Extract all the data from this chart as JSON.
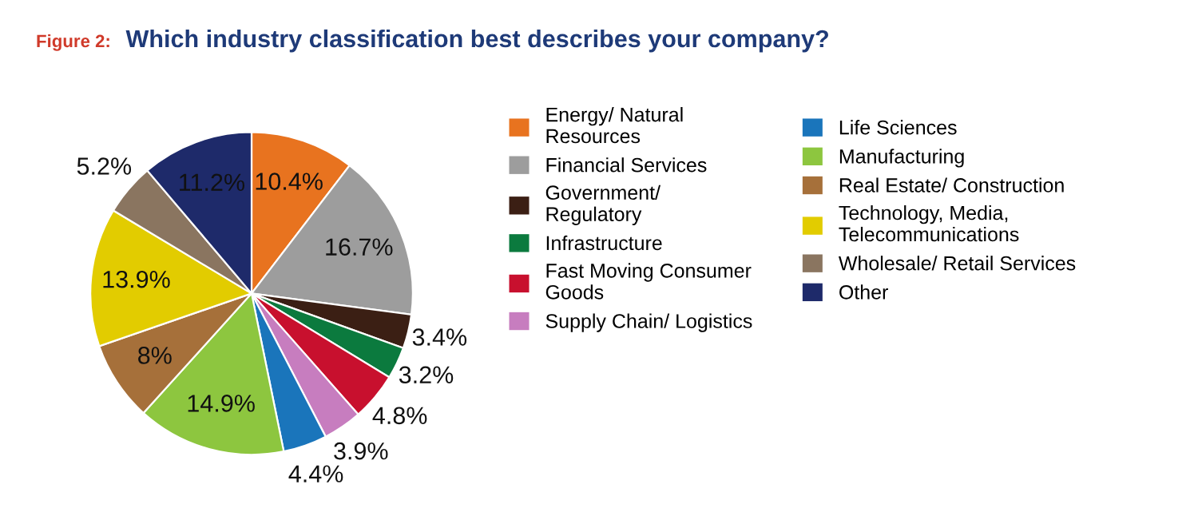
{
  "chart_data": {
    "type": "pie",
    "title": "Which industry classification best describes your company?",
    "annotations": [
      "Figure 2:"
    ],
    "categories": [
      "Energy/ Natural\nResources",
      "Financial Services",
      "Government/\nRegulatory",
      "Infrastructure",
      "Fast Moving Consumer\nGoods",
      "Supply Chain/ Logistics",
      "Life Sciences",
      "Manufacturing",
      "Real Estate/ Construction",
      "Technology, Media,\nTelecommunications",
      "Wholesale/ Retail Services",
      "Other"
    ],
    "values": [
      10.4,
      16.7,
      3.4,
      3.2,
      4.8,
      3.9,
      4.4,
      14.9,
      8,
      13.9,
      5.2,
      11.2
    ],
    "value_labels": [
      "10.4%",
      "16.7%",
      "3.4%",
      "3.2%",
      "4.8%",
      "3.9%",
      "4.4%",
      "14.9%",
      "8%",
      "13.9%",
      "5.2%",
      "11.2%"
    ],
    "colors": [
      "#e8731f",
      "#9d9d9d",
      "#3b1f14",
      "#0b7a3e",
      "#c8102e",
      "#c77dbf",
      "#1a75bb",
      "#8dc63f",
      "#a6703a",
      "#e2cc00",
      "#8a7560",
      "#1e2a6a"
    ],
    "legend": "right"
  }
}
